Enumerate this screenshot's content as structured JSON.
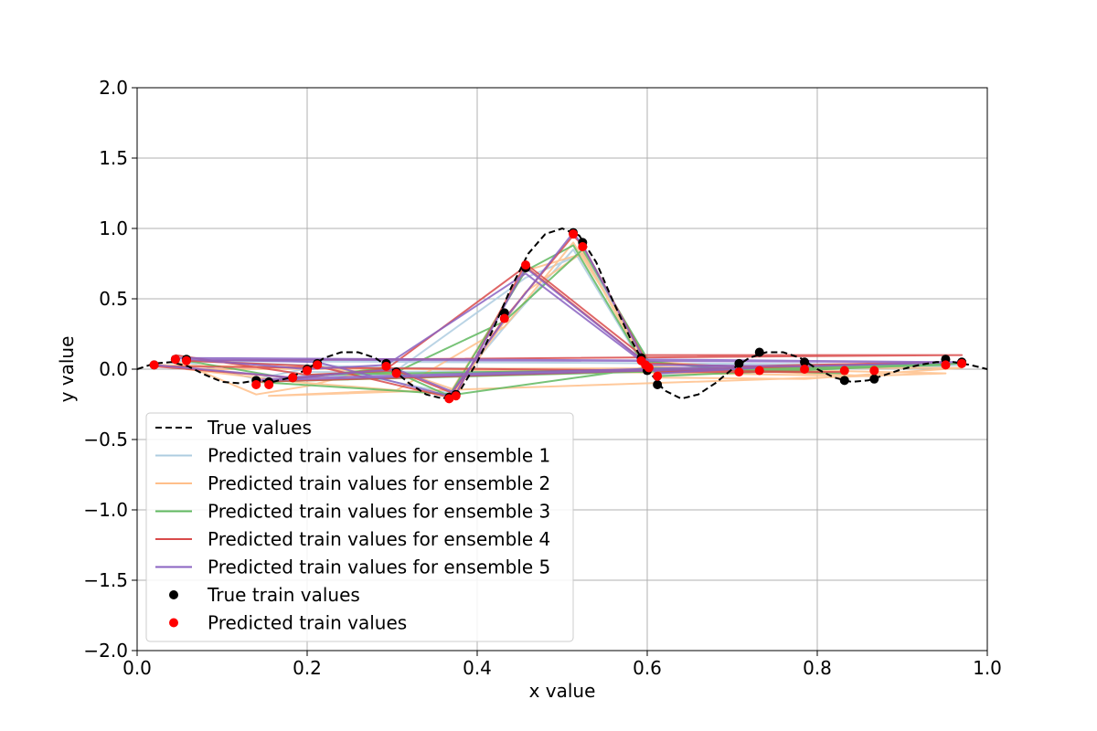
{
  "chart_data": {
    "type": "line",
    "title": "",
    "xlabel": "x value",
    "ylabel": "y value",
    "xlim": [
      0.0,
      1.0
    ],
    "ylim": [
      -2.0,
      2.0
    ],
    "grid": true,
    "legend_placement": "lower-left",
    "x_ticks": [
      "0.0",
      "0.2",
      "0.4",
      "0.6",
      "0.8",
      "1.0"
    ],
    "y_ticks": [
      "−2.0",
      "−1.5",
      "−1.0",
      "−0.5",
      "0.0",
      "0.5",
      "1.0",
      "1.5",
      "2.0"
    ],
    "legend": [
      {
        "label": "True values",
        "kind": "dashed-line",
        "color": "#000000"
      },
      {
        "label": "Predicted train values for ensemble 1",
        "kind": "line",
        "color": "#aecde0"
      },
      {
        "label": "Predicted train values for ensemble 2",
        "kind": "line",
        "color": "#ffbf8a"
      },
      {
        "label": "Predicted train values for ensemble 3",
        "kind": "line",
        "color": "#5fb85f"
      },
      {
        "label": "Predicted train values for ensemble 4",
        "kind": "line",
        "color": "#d94a4a"
      },
      {
        "label": "Predicted train values for ensemble 5",
        "kind": "line",
        "color": "#8a63c2"
      },
      {
        "label": "True train values",
        "kind": "marker",
        "color": "#000000"
      },
      {
        "label": "Predicted train values",
        "kind": "marker",
        "color": "#ff0000"
      }
    ],
    "true_function": {
      "style": "dashed",
      "color": "#000000",
      "x": [
        0.0,
        0.02,
        0.04,
        0.06,
        0.08,
        0.1,
        0.12,
        0.14,
        0.16,
        0.18,
        0.2,
        0.22,
        0.24,
        0.26,
        0.28,
        0.3,
        0.32,
        0.34,
        0.36,
        0.38,
        0.4,
        0.42,
        0.44,
        0.46,
        0.48,
        0.5,
        0.52,
        0.54,
        0.56,
        0.58,
        0.6,
        0.62,
        0.64,
        0.66,
        0.68,
        0.7,
        0.72,
        0.74,
        0.76,
        0.78,
        0.8,
        0.82,
        0.84,
        0.86,
        0.88,
        0.9,
        0.92,
        0.94,
        0.96,
        0.98,
        1.0
      ],
      "y": [
        0.0,
        0.04,
        0.05,
        0.02,
        -0.04,
        -0.09,
        -0.1,
        -0.08,
        -0.09,
        -0.06,
        0.0,
        0.08,
        0.12,
        0.12,
        0.08,
        0.0,
        -0.1,
        -0.18,
        -0.21,
        -0.15,
        0.05,
        0.3,
        0.58,
        0.82,
        0.96,
        1.0,
        0.95,
        0.76,
        0.48,
        0.22,
        0.0,
        -0.15,
        -0.21,
        -0.18,
        -0.1,
        0.0,
        0.08,
        0.12,
        0.12,
        0.08,
        0.0,
        -0.06,
        -0.09,
        -0.08,
        -0.04,
        0.0,
        0.03,
        0.05,
        0.05,
        0.03,
        0.0
      ]
    },
    "true_train_points": {
      "x": [
        0.02,
        0.045,
        0.058,
        0.14,
        0.155,
        0.183,
        0.2,
        0.212,
        0.293,
        0.305,
        0.367,
        0.375,
        0.432,
        0.457,
        0.513,
        0.524,
        0.593,
        0.6,
        0.612,
        0.708,
        0.732,
        0.785,
        0.832,
        0.867,
        0.951,
        0.97
      ],
      "y": [
        0.03,
        0.07,
        0.07,
        -0.08,
        -0.09,
        -0.06,
        0.0,
        0.04,
        0.04,
        -0.02,
        -0.2,
        -0.18,
        0.4,
        0.72,
        0.97,
        0.9,
        0.08,
        -0.01,
        -0.11,
        0.04,
        0.12,
        0.05,
        -0.08,
        -0.07,
        0.07,
        0.05
      ]
    },
    "predicted_train_points": {
      "x": [
        0.02,
        0.045,
        0.058,
        0.14,
        0.155,
        0.183,
        0.2,
        0.212,
        0.293,
        0.305,
        0.367,
        0.375,
        0.432,
        0.457,
        0.513,
        0.524,
        0.593,
        0.598,
        0.602,
        0.612,
        0.708,
        0.732,
        0.785,
        0.832,
        0.867,
        0.951,
        0.97
      ],
      "y": [
        0.03,
        0.07,
        0.06,
        -0.11,
        -0.11,
        -0.06,
        -0.01,
        0.03,
        0.02,
        -0.03,
        -0.21,
        -0.19,
        0.36,
        0.74,
        0.96,
        0.87,
        0.06,
        0.03,
        0.01,
        -0.05,
        -0.02,
        -0.01,
        0.0,
        -0.01,
        -0.01,
        0.03,
        0.04
      ]
    },
    "series": [
      {
        "color": "#aecde0",
        "x": [
          0.058,
          0.14,
          0.212,
          0.367,
          0.432,
          0.513,
          0.593,
          0.785,
          0.951,
          0.183,
          0.305,
          0.457,
          0.524,
          0.612,
          0.97,
          0.045,
          0.293,
          0.708,
          0.2
        ],
        "y": [
          0.05,
          -0.07,
          0.02,
          -0.17,
          0.3,
          0.85,
          0.05,
          0.0,
          0.02,
          -0.05,
          -0.01,
          0.65,
          0.82,
          -0.04,
          0.03,
          0.06,
          0.01,
          -0.01,
          -0.02
        ]
      },
      {
        "color": "#ffbf8a",
        "x": [
          0.045,
          0.14,
          0.2,
          0.293,
          0.375,
          0.457,
          0.524,
          0.593,
          0.732,
          0.951,
          0.155,
          0.305,
          0.432,
          0.513,
          0.612,
          0.785,
          0.97,
          0.058,
          0.183,
          0.367,
          0.457,
          0.524,
          0.6,
          0.867,
          0.02,
          0.212,
          0.305
        ],
        "y": [
          0.06,
          -0.18,
          -0.12,
          0.02,
          -0.15,
          0.55,
          0.83,
          0.06,
          0.0,
          -0.03,
          -0.19,
          -0.15,
          0.3,
          0.9,
          -0.06,
          -0.07,
          0.01,
          0.0,
          -0.09,
          -0.18,
          0.7,
          0.82,
          0.02,
          -0.05,
          0.03,
          0.01,
          -0.04
        ]
      },
      {
        "color": "#5fb85f",
        "x": [
          0.058,
          0.183,
          0.293,
          0.367,
          0.457,
          0.513,
          0.593,
          0.708,
          0.951,
          0.2,
          0.305,
          0.432,
          0.524,
          0.612,
          0.97,
          0.14,
          0.375,
          0.6,
          0.832
        ],
        "y": [
          0.06,
          -0.07,
          0.01,
          -0.19,
          0.7,
          0.88,
          0.06,
          -0.01,
          0.03,
          -0.04,
          -0.02,
          0.34,
          0.85,
          -0.05,
          0.04,
          -0.09,
          -0.18,
          0.01,
          -0.03
        ]
      },
      {
        "color": "#d94a4a",
        "x": [
          0.045,
          0.2,
          0.305,
          0.375,
          0.457,
          0.593,
          0.97,
          0.058,
          0.212,
          0.367,
          0.432,
          0.513,
          0.524,
          0.6,
          0.708,
          0.951,
          0.14,
          0.293,
          0.457,
          0.612,
          0.832,
          0.02,
          0.183
        ],
        "y": [
          0.1,
          -0.04,
          -0.01,
          -0.18,
          0.75,
          0.1,
          0.1,
          0.06,
          0.02,
          -0.2,
          0.36,
          0.95,
          0.88,
          0.04,
          0.02,
          0.05,
          -0.09,
          0.0,
          0.73,
          -0.02,
          -0.02,
          0.02,
          -0.06
        ]
      },
      {
        "color": "#8a63c2",
        "x": [
          0.02,
          0.183,
          0.305,
          0.375,
          0.457,
          0.593,
          0.951,
          0.058,
          0.212,
          0.367,
          0.432,
          0.513,
          0.524,
          0.6,
          0.785,
          0.97,
          0.045,
          0.2,
          0.293,
          0.457,
          0.612,
          0.732,
          0.14,
          0.155,
          0.708
        ],
        "y": [
          0.03,
          -0.06,
          0.0,
          -0.17,
          0.72,
          0.07,
          0.05,
          0.07,
          0.05,
          -0.19,
          0.35,
          0.97,
          0.88,
          0.03,
          0.02,
          0.05,
          0.08,
          0.0,
          0.03,
          0.68,
          -0.03,
          0.01,
          -0.08,
          -0.07,
          0.02
        ]
      }
    ]
  }
}
